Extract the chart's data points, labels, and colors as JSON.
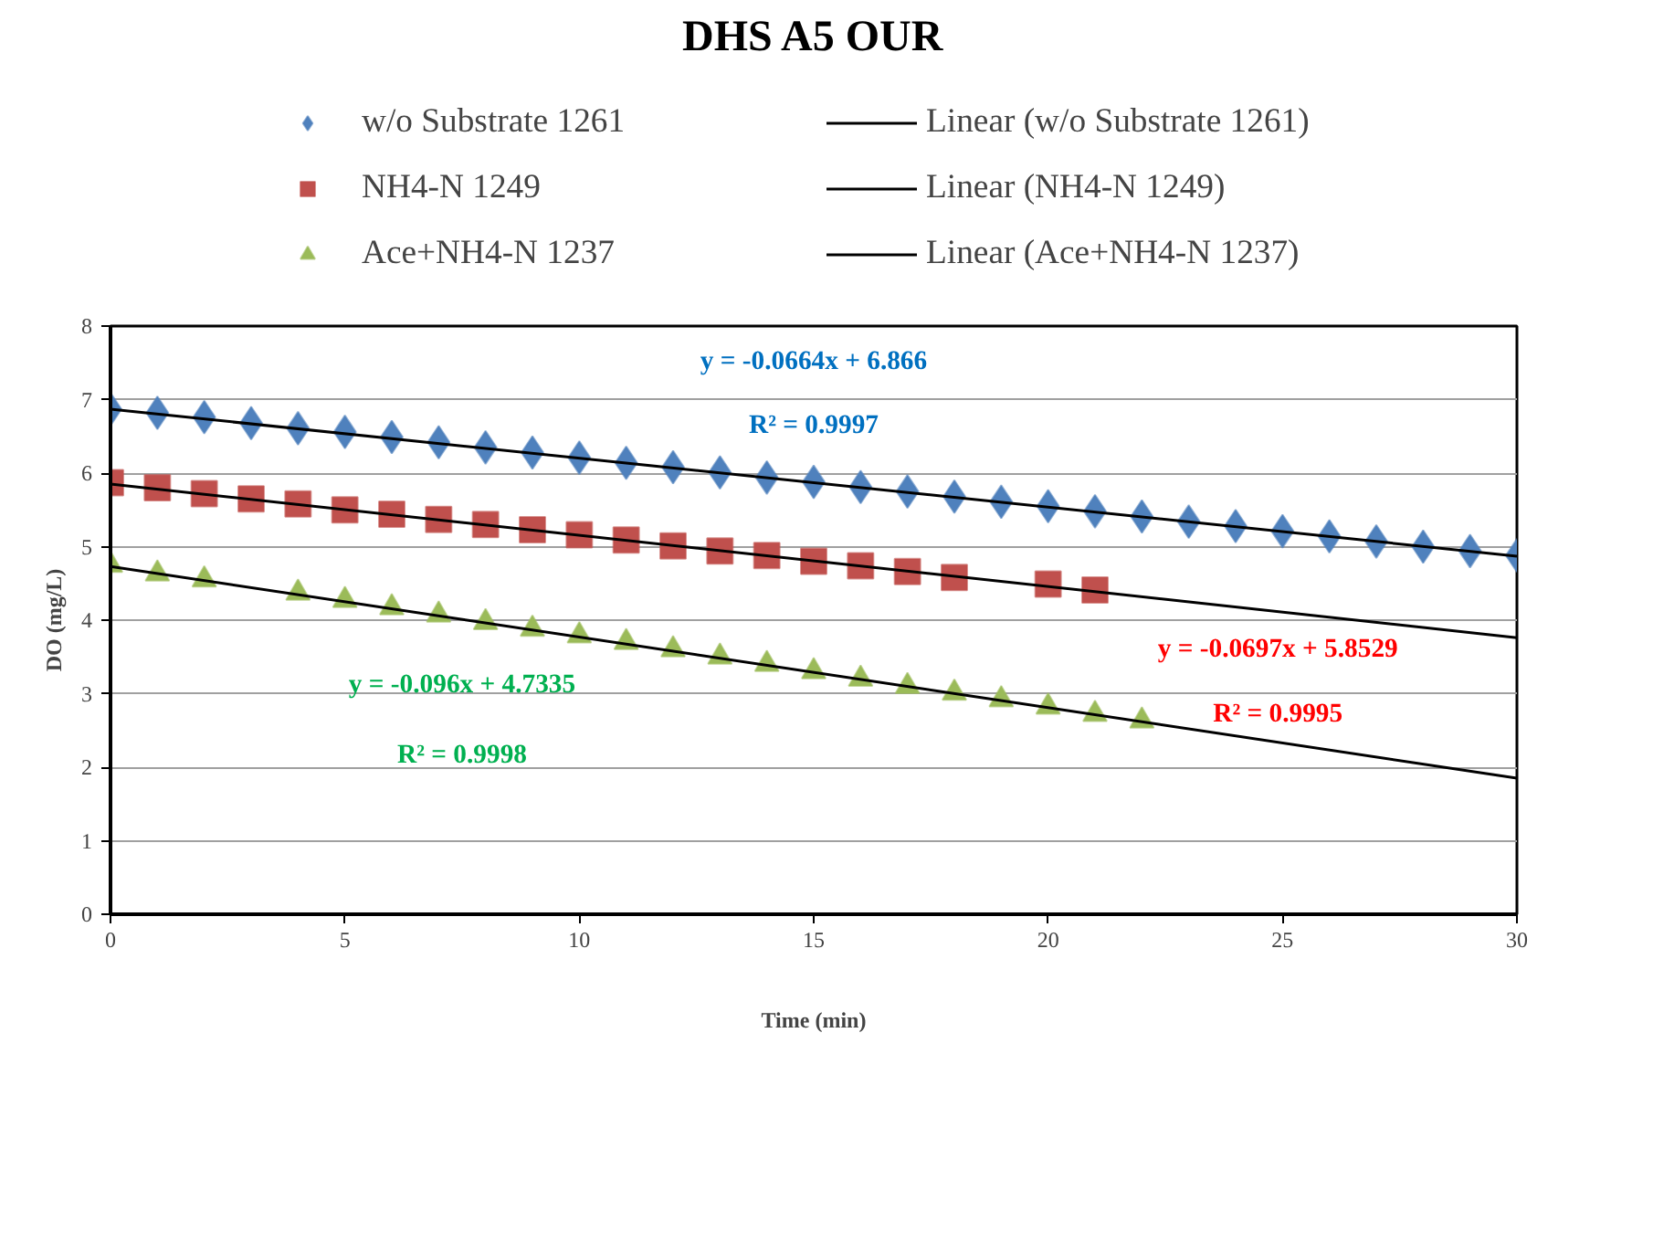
{
  "chart_data": {
    "type": "scatter",
    "title": "DHS A5 OUR",
    "xlabel": "Time (min)",
    "ylabel": "DO (mg/L)",
    "xlim": [
      0,
      30
    ],
    "xticks": [
      0,
      5,
      10,
      15,
      20,
      25,
      30
    ],
    "ylim": [
      0,
      8
    ],
    "yticks": [
      0,
      1,
      2,
      3,
      4,
      5,
      6,
      7,
      8
    ],
    "grid": "y",
    "legend": "top",
    "series": [
      {
        "name": "w/o Substrate 1261",
        "color": "#4f81bd",
        "marker": "diamond",
        "x": [
          0,
          1,
          2,
          3,
          4,
          5,
          6,
          7,
          8,
          9,
          10,
          11,
          12,
          13,
          14,
          15,
          16,
          17,
          18,
          19,
          20,
          21,
          22,
          23,
          24,
          25,
          26,
          27,
          28,
          29,
          30
        ],
        "values": [
          6.87,
          6.82,
          6.76,
          6.68,
          6.61,
          6.56,
          6.49,
          6.42,
          6.35,
          6.28,
          6.21,
          6.14,
          6.08,
          6.01,
          5.94,
          5.88,
          5.81,
          5.75,
          5.68,
          5.61,
          5.55,
          5.48,
          5.41,
          5.34,
          5.28,
          5.21,
          5.14,
          5.07,
          5.0,
          4.94,
          4.88
        ]
      },
      {
        "name": "NH4-N 1249",
        "color": "#c0504d",
        "marker": "square",
        "x": [
          0,
          1,
          2,
          3,
          4,
          5,
          6,
          7,
          8,
          9,
          10,
          11,
          12,
          13,
          14,
          15,
          16,
          17,
          18,
          20,
          21
        ],
        "values": [
          5.87,
          5.8,
          5.72,
          5.65,
          5.58,
          5.5,
          5.44,
          5.37,
          5.3,
          5.23,
          5.16,
          5.09,
          5.01,
          4.94,
          4.88,
          4.8,
          4.74,
          4.66,
          4.58,
          4.49,
          4.41
        ]
      },
      {
        "name": "Ace+NH4-N 1237",
        "color": "#9bbb59",
        "marker": "triangle",
        "x": [
          0,
          1,
          2,
          4,
          5,
          6,
          7,
          8,
          9,
          10,
          11,
          12,
          13,
          14,
          15,
          16,
          17,
          18,
          19,
          20,
          21,
          22
        ],
        "values": [
          4.75,
          4.63,
          4.55,
          4.37,
          4.27,
          4.17,
          4.07,
          3.97,
          3.88,
          3.79,
          3.7,
          3.6,
          3.5,
          3.4,
          3.3,
          3.2,
          3.1,
          3.01,
          2.92,
          2.82,
          2.72,
          2.63
        ]
      },
      {
        "name": "Linear (w/o Substrate 1261)",
        "type": "line",
        "color": "#000000",
        "marker": "none",
        "x": [
          0,
          30
        ],
        "values": [
          6.87,
          4.87
        ]
      },
      {
        "name": "Linear (NH4-N 1249)",
        "type": "line",
        "color": "#000000",
        "marker": "none",
        "x": [
          0,
          30
        ],
        "values": [
          5.85,
          3.76
        ]
      },
      {
        "name": "Linear (Ace+NH4-N 1237)",
        "type": "line",
        "color": "#000000",
        "marker": "none",
        "x": [
          0,
          30
        ],
        "values": [
          4.73,
          1.85
        ]
      }
    ],
    "annotations": [
      "y = -0.0664x + 6.866",
      "R² = 0.9997",
      "y = -0.0697x + 5.8529",
      "R² = 0.9995",
      "y = -0.096x + 4.7335",
      "R² = 0.9998"
    ]
  }
}
